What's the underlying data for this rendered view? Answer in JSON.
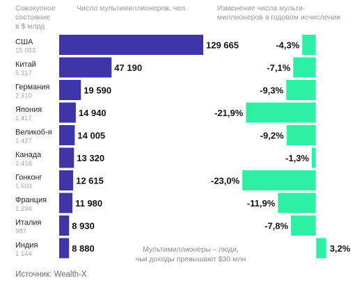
{
  "header": {
    "col1": [
      "Совокупное",
      "состояние",
      "в $ млрд"
    ],
    "col2": "Число мультимиллионеров, чел.",
    "col3": [
      "Изменение числа мульти-",
      "миллионеров в годовом исчислении"
    ]
  },
  "chart_data": {
    "type": "bar",
    "categories": [
      "США",
      "Китай",
      "Германия",
      "Япония",
      "Великоб-я",
      "Канада",
      "Гонконг",
      "Франция",
      "Италия",
      "Индия"
    ],
    "wealth_usd_bn": [
      "15 053",
      "5 317",
      "2 310",
      "1 417",
      "1 427",
      "1 416",
      "1 503",
      "1 294",
      "987",
      "1 144"
    ],
    "series": [
      {
        "values": [
          129665,
          47190,
          19590,
          14940,
          14005,
          13320,
          12615,
          11980,
          8930,
          8880
        ],
        "labels": [
          "129 665",
          "47 190",
          "19 590",
          "14 940",
          "14 005",
          "13 320",
          "12 615",
          "11 980",
          "8 930",
          "8 880"
        ],
        "color": "#3d35a8"
      },
      {
        "values": [
          -4.3,
          -7.1,
          -9.3,
          -21.9,
          -9.2,
          -1.3,
          -23.0,
          -11.9,
          -7.8,
          3.2
        ],
        "labels": [
          "-4,3%",
          "-7,1%",
          "-9,3%",
          "-21,9%",
          "-9,2%",
          "-1,3%",
          "-23,0%",
          "-11,9%",
          "-7,8%",
          "3,2%"
        ],
        "color": "#2ef0a4"
      }
    ]
  },
  "note": [
    "Мультимиллионеры – люди,",
    "чьи доходы превышают $30 млн"
  ],
  "source": "Источник: Wealth-X"
}
